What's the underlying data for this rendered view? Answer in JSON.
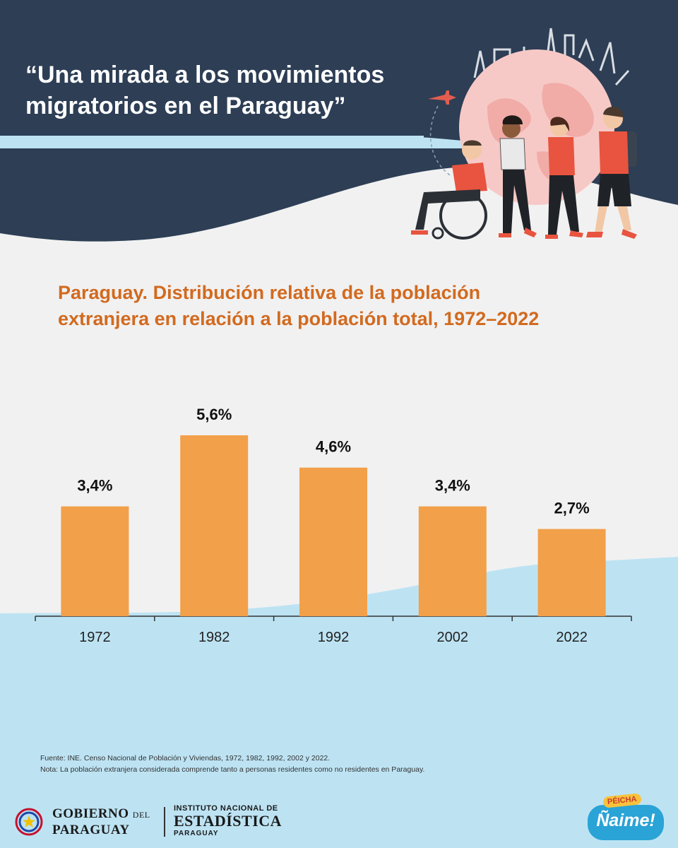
{
  "header": {
    "line1": "“Una mirada a los movimientos",
    "line2": "migratorios en el Paraguay”"
  },
  "illustration": {
    "icons": [
      "globe-icon",
      "airplane-icon",
      "person-wheelchair-icon",
      "person-icon",
      "landmarks-skyline-icon"
    ]
  },
  "chart_data": {
    "type": "bar",
    "title_line1": "Paraguay. Distribución relativa de la población",
    "title_line2": "extranjera en relación a la población total, 1972–2022",
    "categories": [
      "1972",
      "1982",
      "1992",
      "2002",
      "2022"
    ],
    "values": [
      3.4,
      5.6,
      4.6,
      3.4,
      2.7
    ],
    "value_labels": [
      "3,4%",
      "5,6%",
      "4,6%",
      "3,4%",
      "2,7%"
    ],
    "ylim": [
      0,
      5.6
    ],
    "grid": false,
    "bar_color": "#f2a04a"
  },
  "footer": {
    "source": "Fuente: INE. Censo Nacional de Población y Viviendas, 1972, 1982, 1992, 2002 y 2022.",
    "note": "Nota: La población extranjera considerada comprende tanto a personas residentes como no residentes en Paraguay."
  },
  "logos": {
    "gob_line1": "GOBIERNO",
    "gob_del": "DEL",
    "gob_line2": "PARAGUAY",
    "ine_line1": "INSTITUTO NACIONAL DE",
    "ine_line2": "ESTADÍSTICA",
    "ine_line3": "PARAGUAY",
    "badge_small": "PÉICHA",
    "badge_main": "Ñaime!"
  },
  "colors": {
    "navy": "#2d3e55",
    "light_blue": "#bde3f3",
    "orange": "#f2a04a",
    "title_orange": "#d26a1f"
  }
}
